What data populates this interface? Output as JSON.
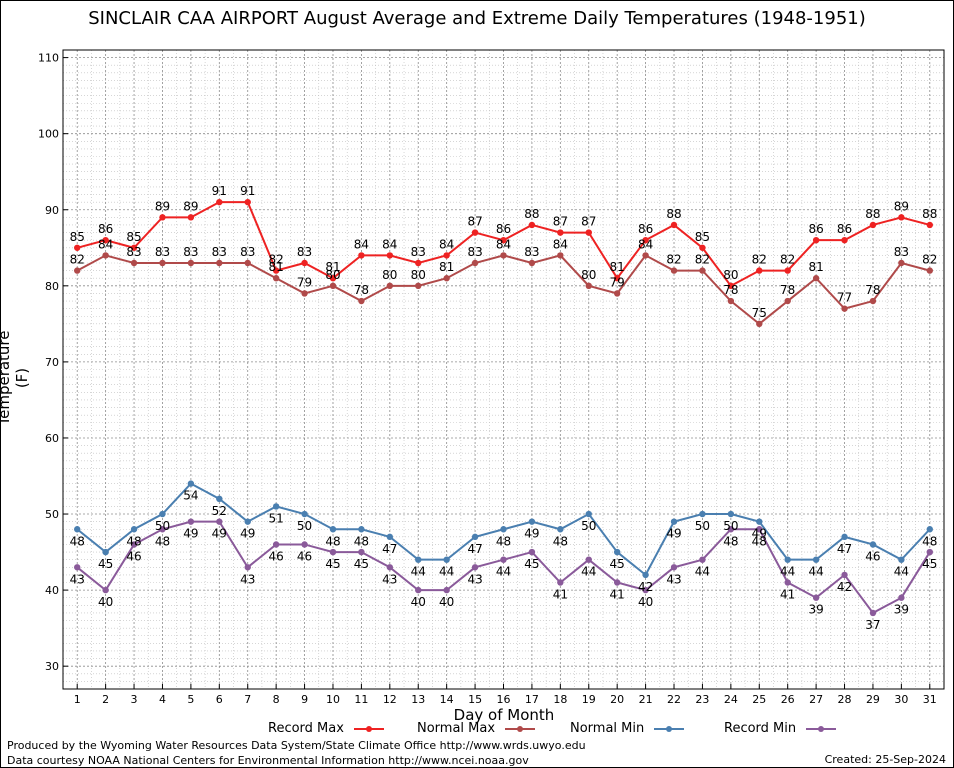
{
  "chart_data": {
    "type": "line",
    "title": "SINCLAIR CAA AIRPORT August Average and Extreme Daily Temperatures (1948-1951)",
    "xlabel": "Day of Month",
    "ylabel": "Temperature (F)",
    "xlim": [
      0.5,
      31.5
    ],
    "ylim": [
      27,
      111
    ],
    "y_ticks": [
      30,
      40,
      50,
      60,
      70,
      80,
      90,
      100,
      110
    ],
    "x": [
      1,
      2,
      3,
      4,
      5,
      6,
      7,
      8,
      9,
      10,
      11,
      12,
      13,
      14,
      15,
      16,
      17,
      18,
      19,
      20,
      21,
      22,
      23,
      24,
      25,
      26,
      27,
      28,
      29,
      30,
      31
    ],
    "grid": true,
    "legend_position": "bottom",
    "series": [
      {
        "name": "Record Max",
        "color": "#ee2222",
        "values": [
          85,
          86,
          85,
          89,
          89,
          91,
          91,
          82,
          83,
          81,
          84,
          84,
          83,
          84,
          87,
          86,
          88,
          87,
          87,
          81,
          86,
          88,
          85,
          80,
          82,
          82,
          86,
          86,
          88,
          89,
          88
        ]
      },
      {
        "name": "Normal Max",
        "color": "#b04a4a",
        "values": [
          82,
          84,
          83,
          83,
          83,
          83,
          83,
          81,
          79,
          80,
          78,
          80,
          80,
          81,
          83,
          84,
          83,
          84,
          80,
          79,
          84,
          82,
          82,
          78,
          75,
          78,
          81,
          77,
          78,
          83,
          82
        ]
      },
      {
        "name": "Normal Min",
        "color": "#4a7fb0",
        "values": [
          48,
          45,
          48,
          50,
          54,
          52,
          49,
          51,
          50,
          48,
          48,
          47,
          44,
          44,
          47,
          48,
          49,
          48,
          50,
          45,
          42,
          49,
          50,
          50,
          49,
          44,
          44,
          47,
          46,
          44,
          48
        ]
      },
      {
        "name": "Record Min",
        "color": "#8a5a9a",
        "values": [
          43,
          40,
          46,
          48,
          49,
          49,
          43,
          46,
          46,
          45,
          45,
          43,
          40,
          40,
          43,
          44,
          45,
          41,
          44,
          41,
          40,
          43,
          44,
          48,
          48,
          41,
          39,
          42,
          37,
          39,
          45
        ]
      }
    ]
  },
  "footer": {
    "line1": "Produced by the Wyoming Water Resources Data System/State Climate Office http://www.wrds.uwyo.edu",
    "line2": "Data courtesy NOAA National Centers for Environmental Information http://www.ncei.noaa.gov",
    "created": "Created:  25-Sep-2024"
  }
}
